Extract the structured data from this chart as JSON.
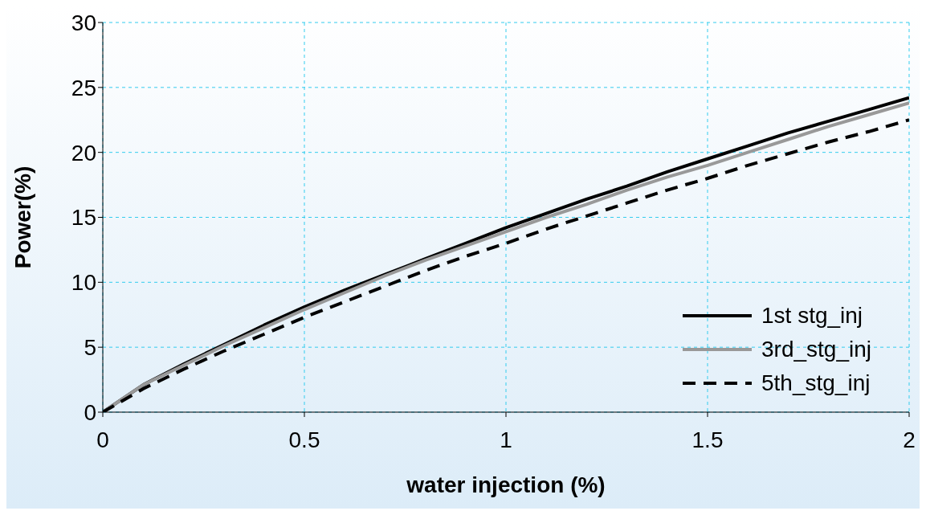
{
  "chart_data": {
    "type": "line",
    "xlabel": "water injection (%)",
    "ylabel": "Power(%)",
    "x": [
      0,
      0.1,
      0.2,
      0.3,
      0.4,
      0.5,
      0.6,
      0.7,
      0.8,
      0.9,
      1.0,
      1.1,
      1.2,
      1.3,
      1.4,
      1.5,
      1.6,
      1.7,
      1.8,
      1.9,
      2.0
    ],
    "series": [
      {
        "name": "1st stg_inj",
        "color": "#000000",
        "line_style": "solid",
        "values": [
          0,
          2.1,
          3.7,
          5.2,
          6.7,
          8.1,
          9.4,
          10.6,
          11.8,
          13.0,
          14.2,
          15.3,
          16.4,
          17.4,
          18.5,
          19.5,
          20.5,
          21.5,
          22.4,
          23.3,
          24.2
        ]
      },
      {
        "name": "3rd_stg_inj",
        "color": "#999999",
        "line_style": "solid",
        "values": [
          0,
          2.1,
          3.6,
          5.1,
          6.5,
          7.9,
          9.2,
          10.5,
          11.7,
          12.8,
          13.9,
          15.0,
          16.0,
          17.1,
          18.1,
          19.0,
          20.0,
          21.0,
          22.0,
          22.9,
          23.8
        ]
      },
      {
        "name": "5th_stg_inj",
        "color": "#000000",
        "line_style": "dashed",
        "values": [
          0,
          1.8,
          3.3,
          4.7,
          6.0,
          7.3,
          8.5,
          9.7,
          10.9,
          12.0,
          13.0,
          14.1,
          15.1,
          16.1,
          17.1,
          18.0,
          19.0,
          19.9,
          20.8,
          21.6,
          22.5
        ]
      }
    ],
    "xlim": [
      0,
      2
    ],
    "xticks": [
      0,
      0.5,
      1,
      1.5,
      2
    ],
    "ylim": [
      0,
      30
    ],
    "yticks": [
      0,
      5,
      10,
      15,
      20,
      25,
      30
    ],
    "grid": true,
    "legend": "bottom right",
    "marker": "none"
  }
}
